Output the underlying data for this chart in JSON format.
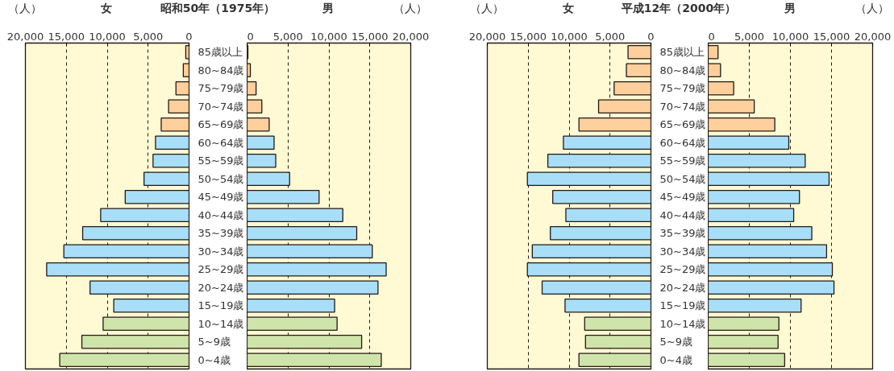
{
  "chart_data": [
    {
      "type": "bar",
      "orientation": "horizontal",
      "title": "女",
      "xlabel": "（人）",
      "subtitle": "昭和50年（1975年）",
      "categories": [
        "85歳以上",
        "80~84歳",
        "75~79歳",
        "70~74歳",
        "65~69歳",
        "60~64歳",
        "55~59歳",
        "50~54歳",
        "45~49歳",
        "40~44歳",
        "35~39歳",
        "30~34歳",
        "25~29歳",
        "20~24歳",
        "15~19歳",
        "10~14歳",
        "5~9歳",
        "0~4歳"
      ],
      "values": [
        400,
        700,
        1600,
        2500,
        3400,
        4100,
        4400,
        5500,
        7800,
        10800,
        13000,
        15300,
        17400,
        12100,
        9200,
        10500,
        13100,
        15800
      ],
      "colors": [
        "#fccf9c",
        "#fccf9c",
        "#fccf9c",
        "#fccf9c",
        "#fccf9c",
        "#a9def8",
        "#a9def8",
        "#a9def8",
        "#a9def8",
        "#a9def8",
        "#a9def8",
        "#a9def8",
        "#a9def8",
        "#a9def8",
        "#a9def8",
        "#cfe4aa",
        "#cfe4aa",
        "#cfe4aa"
      ],
      "xlim": [
        20000,
        0
      ],
      "xticks": [
        {
          "value": 20000,
          "label": "20,000"
        },
        {
          "value": 15000,
          "label": "15,000"
        },
        {
          "value": 10000,
          "label": "10,000"
        },
        {
          "value": 5000,
          "label": "5,000"
        },
        0
      ],
      "grid": "x"
    },
    {
      "type": "bar",
      "orientation": "horizontal",
      "title": "男",
      "xlabel": "（人）",
      "categories": [
        null,
        null,
        null,
        null,
        null,
        null,
        null,
        null,
        null,
        null,
        null,
        null,
        null,
        null,
        null,
        null,
        null,
        null
      ],
      "values": [
        100,
        400,
        1100,
        1800,
        2700,
        3300,
        3500,
        5200,
        8800,
        11700,
        13400,
        15300,
        17000,
        16000,
        10700,
        11000,
        14000,
        16400
      ],
      "colors": [
        "#fccf9c",
        "#fccf9c",
        "#fccf9c",
        "#fccf9c",
        "#fccf9c",
        "#a9def8",
        "#a9def8",
        "#a9def8",
        "#a9def8",
        "#a9def8",
        "#a9def8",
        "#a9def8",
        "#a9def8",
        "#a9def8",
        "#a9def8",
        "#cfe4aa",
        "#cfe4aa",
        "#cfe4aa"
      ],
      "xlim": [
        0,
        20000
      ],
      "xticks": [
        0,
        {
          "value": 5000,
          "label": "5,000"
        },
        {
          "value": 10000,
          "label": "10,000"
        },
        {
          "value": 15000,
          "label": "15,000"
        },
        {
          "value": 20000,
          "label": "20,000"
        }
      ],
      "grid": "x",
      "tick_labels": "x"
    },
    {
      "type": "bar",
      "orientation": "horizontal",
      "title": "女",
      "xlabel": "（人）",
      "subtitle": "平成12年（2000年）",
      "categories": [
        "85歳以上",
        "80~84歳",
        "75~79歳",
        "70~74歳",
        "65~69歳",
        "60~64歳",
        "55~59歳",
        "50~54歳",
        "45~49歳",
        "40~44歳",
        "35~39歳",
        "30~34歳",
        "25~29歳",
        "20~24歳",
        "15~19歳",
        "10~14歳",
        "5~9歳",
        "0~4歳"
      ],
      "values": [
        2800,
        3000,
        4500,
        6400,
        8800,
        10700,
        12600,
        15100,
        12000,
        10400,
        12300,
        14500,
        15100,
        13300,
        10500,
        8100,
        8000,
        8800
      ],
      "colors": [
        "#fccf9c",
        "#fccf9c",
        "#fccf9c",
        "#fccf9c",
        "#fccf9c",
        "#a9def8",
        "#a9def8",
        "#a9def8",
        "#a9def8",
        "#a9def8",
        "#a9def8",
        "#a9def8",
        "#a9def8",
        "#a9def8",
        "#a9def8",
        "#cfe4aa",
        "#cfe4aa",
        "#cfe4aa"
      ],
      "xlim": [
        20000,
        0
      ],
      "xticks": [
        {
          "value": 20000,
          "label": "20,000"
        },
        {
          "value": 15000,
          "label": "15,000"
        },
        {
          "value": 10000,
          "label": "10,000"
        },
        {
          "value": 5000,
          "label": "5,000"
        },
        0
      ],
      "grid": "x"
    },
    {
      "type": "bar",
      "orientation": "horizontal",
      "title": "男",
      "xlabel": "（人）",
      "categories": [
        null,
        null,
        null,
        null,
        null,
        null,
        null,
        null,
        null,
        null,
        null,
        null,
        null,
        null,
        null,
        null,
        null,
        null
      ],
      "values": [
        1200,
        1500,
        3100,
        5600,
        8100,
        9800,
        11800,
        14700,
        11100,
        10400,
        12600,
        14400,
        15100,
        15300,
        11300,
        8600,
        8500,
        9300
      ],
      "colors": [
        "#fccf9c",
        "#fccf9c",
        "#fccf9c",
        "#fccf9c",
        "#fccf9c",
        "#a9def8",
        "#a9def8",
        "#a9def8",
        "#a9def8",
        "#a9def8",
        "#a9def8",
        "#a9def8",
        "#a9def8",
        "#a9def8",
        "#a9def8",
        "#cfe4aa",
        "#cfe4aa",
        "#cfe4aa"
      ],
      "xlim": [
        0,
        20000
      ],
      "xticks": [
        0,
        {
          "value": 5000,
          "label": "5,000"
        },
        {
          "value": 10000,
          "label": "10,000"
        },
        {
          "value": 15000,
          "label": "15,000"
        },
        {
          "value": 20000,
          "label": "20,000"
        }
      ],
      "grid": "x",
      "tick_labels": "x"
    }
  ]
}
